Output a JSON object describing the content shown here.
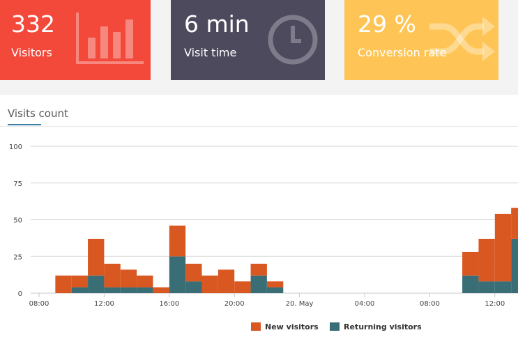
{
  "cards": [
    {
      "value": "332",
      "label": "Visitors",
      "icon": "bar-chart-icon",
      "color": "#f3493b"
    },
    {
      "value": "6 min",
      "label": "Visit time",
      "icon": "clock-icon",
      "color": "#4d4a5e"
    },
    {
      "value": "29 %",
      "label": "Conversion rate",
      "icon": "shuffle-icon",
      "color": "#fec556"
    }
  ],
  "panel": {
    "title": "Visits count"
  },
  "chart_data": {
    "type": "bar",
    "stacked": true,
    "y_ticks": [
      0,
      25,
      50,
      75,
      100
    ],
    "ylim": [
      0,
      100
    ],
    "x_tick_labels": [
      "08:00",
      "12:00",
      "16:00",
      "20:00",
      "20. May",
      "04:00",
      "08:00",
      "12:00"
    ],
    "x_tick_hours": [
      8,
      12,
      16,
      20,
      24,
      28,
      32,
      36
    ],
    "bar_hours": [
      9,
      10,
      11,
      12,
      13,
      14,
      15,
      16,
      17,
      18,
      19,
      20,
      21,
      22,
      34,
      35,
      36,
      37
    ],
    "series": [
      {
        "name": "Returning visitors",
        "color": "#3a6e77",
        "values": [
          0,
          4,
          12,
          4,
          4,
          4,
          0,
          25,
          8,
          0,
          0,
          0,
          12,
          4,
          12,
          8,
          8,
          37
        ]
      },
      {
        "name": "New visitors",
        "color": "#d95721",
        "values": [
          12,
          8,
          25,
          16,
          12,
          8,
          4,
          21,
          12,
          12,
          16,
          8,
          8,
          4,
          16,
          29,
          46,
          21
        ]
      }
    ],
    "grid": true,
    "legend_position": "bottom-right"
  }
}
